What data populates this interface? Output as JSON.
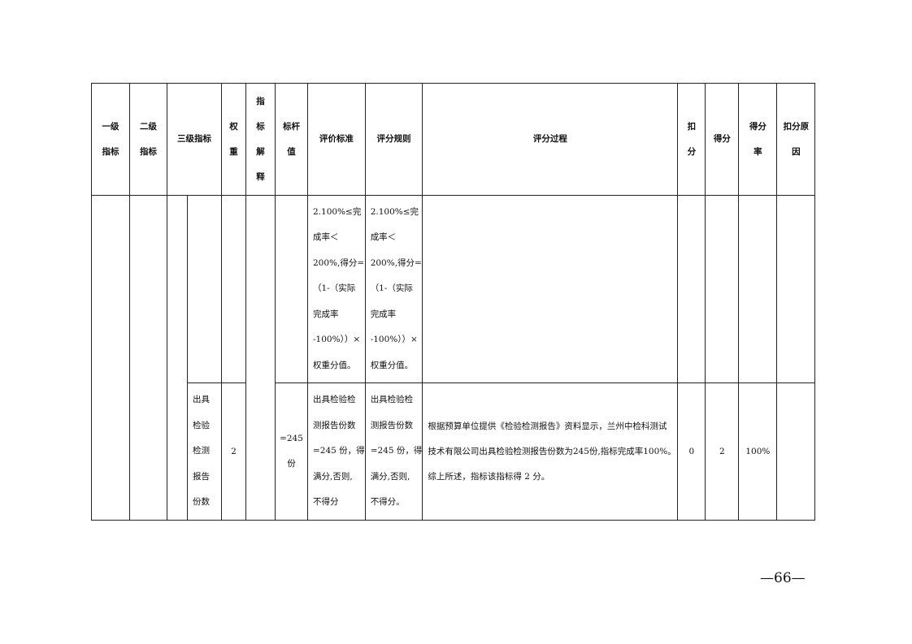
{
  "header": {
    "level1": [
      "一级",
      "指标"
    ],
    "level2": [
      "二级",
      "指标"
    ],
    "level3": [
      "三级指标"
    ],
    "weight": [
      "权",
      "重"
    ],
    "explain": [
      "指",
      "标",
      "解",
      "释"
    ],
    "benchmark": [
      "标杆",
      "值"
    ],
    "standard": [
      "评价标准"
    ],
    "rule": [
      "评分规则"
    ],
    "process": [
      "评分过程"
    ],
    "deduct": [
      "扣",
      "分"
    ],
    "score": [
      "得分"
    ],
    "rate": [
      "得分",
      "率"
    ],
    "reason": [
      "扣分原",
      "因"
    ]
  },
  "rows": [
    {
      "standard": [
        "2.100%≤完",
        "成率＜",
        "200%,得分=",
        "（1-（实际",
        "完成率",
        "-100%））×",
        "权重分值。"
      ],
      "rule": [
        "2.100%≤完",
        "成率＜",
        "200%,得分=",
        "（1-（实际",
        "完成率",
        "-100%））×",
        "权重分值。"
      ]
    },
    {
      "indicator": [
        "出具",
        "检验",
        "检测",
        "报告",
        "份数"
      ],
      "weight": "2",
      "benchmark": [
        "=245",
        "份"
      ],
      "standard": [
        "出具检验检",
        "测报告份数",
        "=245 份，得",
        "满分,否则,",
        "不得分"
      ],
      "rule": [
        "出具检验检",
        "测报告份数",
        "=245 份，得",
        "满分,否则,",
        "不得分。"
      ],
      "process": [
        "根据预算单位提供《检验检测报告》资料显示，兰州中检科测试",
        "技术有限公司出具检验检测报告份数为245份,指标完成率100%。",
        "综上所述，指标该指标得 2 分。"
      ],
      "deduct": "0",
      "score": "2",
      "rate": "100%",
      "reason": ""
    }
  ],
  "page_number": "—66—"
}
